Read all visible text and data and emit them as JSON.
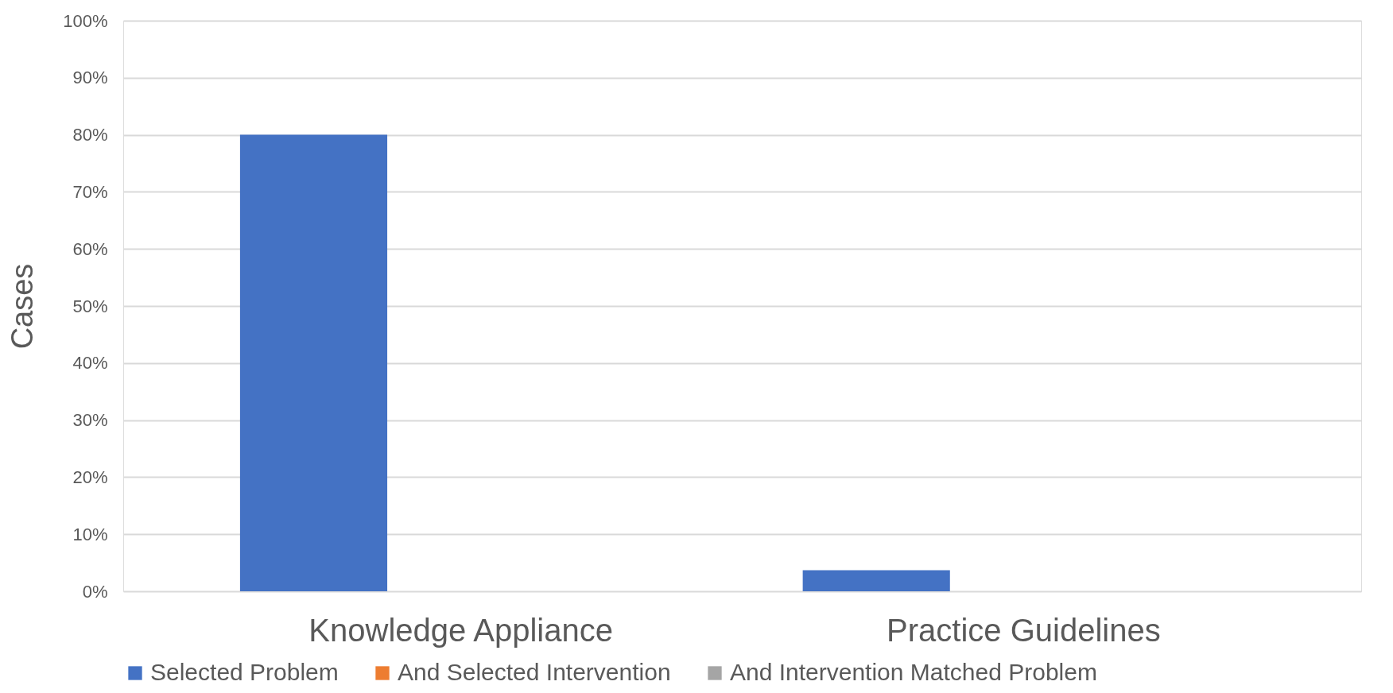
{
  "chart_data": {
    "type": "bar",
    "ylabel": "Cases",
    "categories": [
      "Knowledge Appliance",
      "Practice Guidelines"
    ],
    "series": [
      {
        "name": "Selected Problem",
        "color": "#4472c4",
        "values": [
          80,
          3.7
        ]
      },
      {
        "name": "And Selected Intervention",
        "color": "#ed7d31",
        "values": [
          0,
          0
        ]
      },
      {
        "name": "And Intervention Matched Problem",
        "color": "#a5a5a5",
        "values": [
          0,
          0
        ]
      }
    ],
    "ylim": [
      0,
      100
    ],
    "yticks": [
      {
        "value": 0,
        "label": "0%"
      },
      {
        "value": 10,
        "label": "10%"
      },
      {
        "value": 20,
        "label": "20%"
      },
      {
        "value": 30,
        "label": "30%"
      },
      {
        "value": 40,
        "label": "40%"
      },
      {
        "value": 50,
        "label": "50%"
      },
      {
        "value": 60,
        "label": "60%"
      },
      {
        "value": 70,
        "label": "70%"
      },
      {
        "value": 80,
        "label": "80%"
      },
      {
        "value": 90,
        "label": "90%"
      },
      {
        "value": 100,
        "label": "100%"
      }
    ],
    "grid": "y",
    "legend": "bottom"
  }
}
